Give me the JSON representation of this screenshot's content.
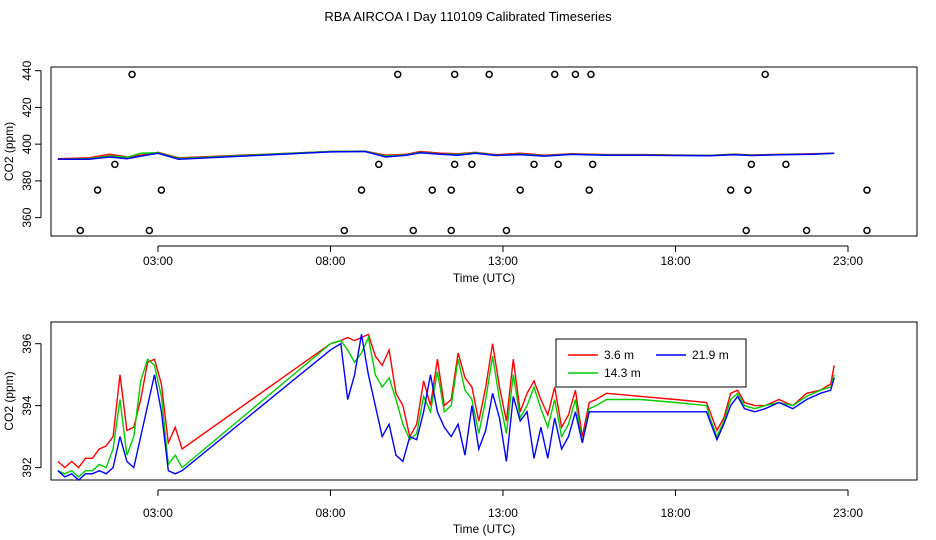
{
  "title": "RBA AIRCOA I  Day 110109  Calibrated Timeseries",
  "chart_data": [
    {
      "type": "scatter",
      "xlabel": "Time (UTC)",
      "ylabel": "CO2 (ppm)",
      "xticks": [
        "03:00",
        "08:00",
        "13:00",
        "18:00",
        "23:00"
      ],
      "xtick_hours": [
        3,
        8,
        13,
        18,
        23
      ],
      "yticks": [
        360,
        380,
        400,
        420,
        440
      ],
      "xlim": [
        -0.1,
        25.0
      ],
      "ylim": [
        350,
        442
      ],
      "colors": {
        "3.6 m": "#ff0000",
        "14.3 m": "#00cc00",
        "21.9 m": "#0000ff",
        "calibration": "#000000"
      },
      "calibration_points": {
        "x": [
          0.75,
          1.25,
          1.75,
          2.25,
          2.75,
          3.1,
          8.4,
          8.9,
          9.4,
          9.95,
          10.4,
          10.95,
          11.5,
          11.5,
          11.6,
          11.6,
          12.1,
          12.6,
          13.1,
          13.5,
          13.9,
          14.5,
          14.6,
          15.1,
          15.5,
          15.6,
          15.55,
          19.6,
          20.05,
          20.1,
          20.2,
          20.6,
          21.2,
          21.8,
          23.55,
          23.55
        ],
        "y": [
          353,
          375,
          389,
          438,
          353,
          375,
          353,
          375,
          389,
          438,
          353,
          375,
          353,
          375,
          389,
          438,
          389,
          438,
          353,
          375,
          389,
          438,
          389,
          438,
          375,
          389,
          438,
          375,
          353,
          375,
          389,
          438,
          389,
          353,
          375,
          353
        ]
      },
      "series_lines": [
        {
          "name": "3.6 m",
          "x": [
            0.1,
            1.0,
            1.6,
            2.1,
            2.5,
            3.0,
            3.6,
            8.0,
            9.0,
            9.6,
            10.2,
            10.6,
            11.2,
            11.7,
            12.2,
            12.8,
            13.5,
            14.2,
            15.0,
            16.0,
            17.0,
            19.0,
            19.7,
            20.2,
            21.0,
            22.0,
            22.6
          ],
          "y": [
            392,
            392.5,
            394.5,
            393,
            394,
            395.5,
            392.5,
            396,
            396.2,
            394,
            394.5,
            396,
            395,
            394.8,
            395.5,
            394.2,
            395,
            394,
            394.8,
            394.3,
            394.3,
            393.9,
            394.6,
            394.1,
            394.4,
            394.8,
            395
          ]
        },
        {
          "name": "14.3 m",
          "x": [
            0.1,
            1.0,
            1.6,
            2.1,
            2.5,
            3.0,
            3.6,
            8.0,
            9.0,
            9.6,
            10.2,
            10.6,
            11.2,
            11.7,
            12.2,
            12.8,
            13.5,
            14.2,
            15.0,
            16.0,
            17.0,
            19.0,
            19.7,
            20.2,
            21.0,
            22.0,
            22.6
          ],
          "y": [
            391.8,
            392.0,
            393.6,
            392.8,
            395.0,
            395.3,
            392.2,
            396,
            396.1,
            393.5,
            394.2,
            395.6,
            394.6,
            394.4,
            395.3,
            394.0,
            394.6,
            393.7,
            394.6,
            394.1,
            394.1,
            393.8,
            394.4,
            394.0,
            394.3,
            394.6,
            395
          ]
        },
        {
          "name": "21.9 m",
          "x": [
            0.1,
            1.0,
            1.6,
            2.1,
            2.5,
            3.0,
            3.6,
            8.0,
            9.0,
            9.6,
            10.2,
            10.6,
            11.2,
            11.7,
            12.2,
            12.8,
            13.5,
            14.2,
            15.0,
            16.0,
            17.0,
            19.0,
            19.7,
            20.2,
            21.0,
            22.0,
            22.6
          ],
          "y": [
            391.8,
            391.8,
            393.0,
            392.0,
            393.5,
            395.0,
            391.8,
            395.8,
            396.0,
            393.0,
            394.0,
            395.3,
            394.5,
            394.0,
            395.0,
            393.8,
            394.3,
            393.5,
            394.4,
            394.0,
            394.0,
            393.7,
            394.2,
            393.8,
            394.2,
            394.5,
            395
          ]
        }
      ]
    },
    {
      "type": "line",
      "xlabel": "Time (UTC)",
      "ylabel": "CO2 (ppm)",
      "xticks": [
        "03:00",
        "08:00",
        "13:00",
        "18:00",
        "23:00"
      ],
      "xtick_hours": [
        3,
        8,
        13,
        18,
        23
      ],
      "yticks": [
        392,
        394,
        396
      ],
      "xlim": [
        -0.1,
        25.0
      ],
      "ylim": [
        391.6,
        396.7
      ],
      "legend": {
        "placement": "top-center"
      },
      "series": [
        {
          "name": "3.6 m",
          "color": "#ff0000",
          "x": [
            0.1,
            0.3,
            0.5,
            0.7,
            0.9,
            1.1,
            1.3,
            1.5,
            1.7,
            1.9,
            2.1,
            2.3,
            2.5,
            2.7,
            2.9,
            3.1,
            3.3,
            3.5,
            3.7,
            8.0,
            8.3,
            8.5,
            8.7,
            8.9,
            9.1,
            9.3,
            9.5,
            9.7,
            9.9,
            10.1,
            10.3,
            10.5,
            10.7,
            10.9,
            11.1,
            11.3,
            11.5,
            11.7,
            11.9,
            12.1,
            12.3,
            12.5,
            12.7,
            12.9,
            13.1,
            13.3,
            13.5,
            13.7,
            13.9,
            14.1,
            14.3,
            14.5,
            14.7,
            14.9,
            15.1,
            15.3,
            15.5,
            15.7,
            16.0,
            17.0,
            18.0,
            18.9,
            19.0,
            19.2,
            19.4,
            19.6,
            19.8,
            20.0,
            20.3,
            20.6,
            21.0,
            21.4,
            21.8,
            22.2,
            22.5,
            22.6
          ],
          "y": [
            392.2,
            392.0,
            392.2,
            392.0,
            392.3,
            392.3,
            392.6,
            392.7,
            393.0,
            395.0,
            393.2,
            393.3,
            394.2,
            395.4,
            395.5,
            394.7,
            392.8,
            393.3,
            392.6,
            396.0,
            396.1,
            396.2,
            396.1,
            396.2,
            396.3,
            395.6,
            395.3,
            395.8,
            394.4,
            394.0,
            393.0,
            393.4,
            394.8,
            394.0,
            395.5,
            394.0,
            394.2,
            395.7,
            394.9,
            394.6,
            393.5,
            394.6,
            396.0,
            394.6,
            393.5,
            395.5,
            393.8,
            394.4,
            394.8,
            394.2,
            393.7,
            394.6,
            393.3,
            393.7,
            394.5,
            393.0,
            394.1,
            394.2,
            394.4,
            394.3,
            394.2,
            394.1,
            393.8,
            393.2,
            393.6,
            394.4,
            394.5,
            394.1,
            394.0,
            394.0,
            394.2,
            394.0,
            394.4,
            394.5,
            394.7,
            395.3
          ]
        },
        {
          "name": "14.3 m",
          "color": "#00cc00",
          "x": [
            0.1,
            0.3,
            0.5,
            0.7,
            0.9,
            1.1,
            1.3,
            1.5,
            1.7,
            1.9,
            2.1,
            2.3,
            2.5,
            2.7,
            2.9,
            3.1,
            3.3,
            3.5,
            3.7,
            8.0,
            8.3,
            8.5,
            8.7,
            8.9,
            9.1,
            9.3,
            9.5,
            9.7,
            9.9,
            10.1,
            10.3,
            10.5,
            10.7,
            10.9,
            11.1,
            11.3,
            11.5,
            11.7,
            11.9,
            12.1,
            12.3,
            12.5,
            12.7,
            12.9,
            13.1,
            13.3,
            13.5,
            13.7,
            13.9,
            14.1,
            14.3,
            14.5,
            14.7,
            14.9,
            15.1,
            15.3,
            15.5,
            15.7,
            16.0,
            17.0,
            18.0,
            18.9,
            19.0,
            19.2,
            19.4,
            19.6,
            19.8,
            20.0,
            20.3,
            20.6,
            21.0,
            21.4,
            21.8,
            22.2,
            22.5,
            22.6
          ],
          "y": [
            391.9,
            391.8,
            391.9,
            391.7,
            391.9,
            391.9,
            392.1,
            392.0,
            392.6,
            394.2,
            392.4,
            393.0,
            394.8,
            395.5,
            395.3,
            394.3,
            392.1,
            392.4,
            392.0,
            396.0,
            396.1,
            395.8,
            395.4,
            395.7,
            396.2,
            395.0,
            394.6,
            394.9,
            394.2,
            393.4,
            392.9,
            393.1,
            394.3,
            393.8,
            395.1,
            393.8,
            394.0,
            395.5,
            394.5,
            394.2,
            393.1,
            394.2,
            395.6,
            394.2,
            393.1,
            395.0,
            393.6,
            394.0,
            394.6,
            393.9,
            393.3,
            394.2,
            393.0,
            393.4,
            394.2,
            392.8,
            393.9,
            394.0,
            394.2,
            394.2,
            394.1,
            394.0,
            393.6,
            393.0,
            393.5,
            394.2,
            394.4,
            394.0,
            393.9,
            394.0,
            394.1,
            394.0,
            394.3,
            394.5,
            394.6,
            395.0
          ]
        },
        {
          "name": "21.9 m",
          "color": "#0000ff",
          "x": [
            0.1,
            0.3,
            0.5,
            0.7,
            0.9,
            1.1,
            1.3,
            1.5,
            1.7,
            1.9,
            2.1,
            2.3,
            2.5,
            2.7,
            2.9,
            3.1,
            3.3,
            3.5,
            3.7,
            8.0,
            8.3,
            8.5,
            8.7,
            8.9,
            9.1,
            9.3,
            9.5,
            9.7,
            9.9,
            10.1,
            10.3,
            10.5,
            10.7,
            10.9,
            11.1,
            11.3,
            11.5,
            11.7,
            11.9,
            12.1,
            12.3,
            12.5,
            12.7,
            12.9,
            13.1,
            13.3,
            13.5,
            13.7,
            13.9,
            14.1,
            14.3,
            14.5,
            14.7,
            14.9,
            15.1,
            15.3,
            15.5,
            15.7,
            16.0,
            17.0,
            18.0,
            18.9,
            19.0,
            19.2,
            19.4,
            19.6,
            19.8,
            20.0,
            20.3,
            20.6,
            21.0,
            21.4,
            21.8,
            22.2,
            22.5,
            22.6
          ],
          "y": [
            391.9,
            391.7,
            391.8,
            391.6,
            391.8,
            391.8,
            391.9,
            391.8,
            392.0,
            393.0,
            392.2,
            392.0,
            393.0,
            394.0,
            395.0,
            393.8,
            391.9,
            391.8,
            391.9,
            395.8,
            396.0,
            394.2,
            395.0,
            396.3,
            395.0,
            394.0,
            393.0,
            393.4,
            392.4,
            392.2,
            393.0,
            392.9,
            393.8,
            395.0,
            393.8,
            393.3,
            393.0,
            393.4,
            392.4,
            394.0,
            392.6,
            393.2,
            394.4,
            393.6,
            392.2,
            394.3,
            393.5,
            393.8,
            392.3,
            393.3,
            392.3,
            393.6,
            392.6,
            393.0,
            393.8,
            392.8,
            393.8,
            393.8,
            393.8,
            393.8,
            393.8,
            393.8,
            393.5,
            392.9,
            393.4,
            394.0,
            394.3,
            393.9,
            393.8,
            393.9,
            394.1,
            393.9,
            394.2,
            394.4,
            394.5,
            394.9
          ]
        }
      ]
    }
  ]
}
